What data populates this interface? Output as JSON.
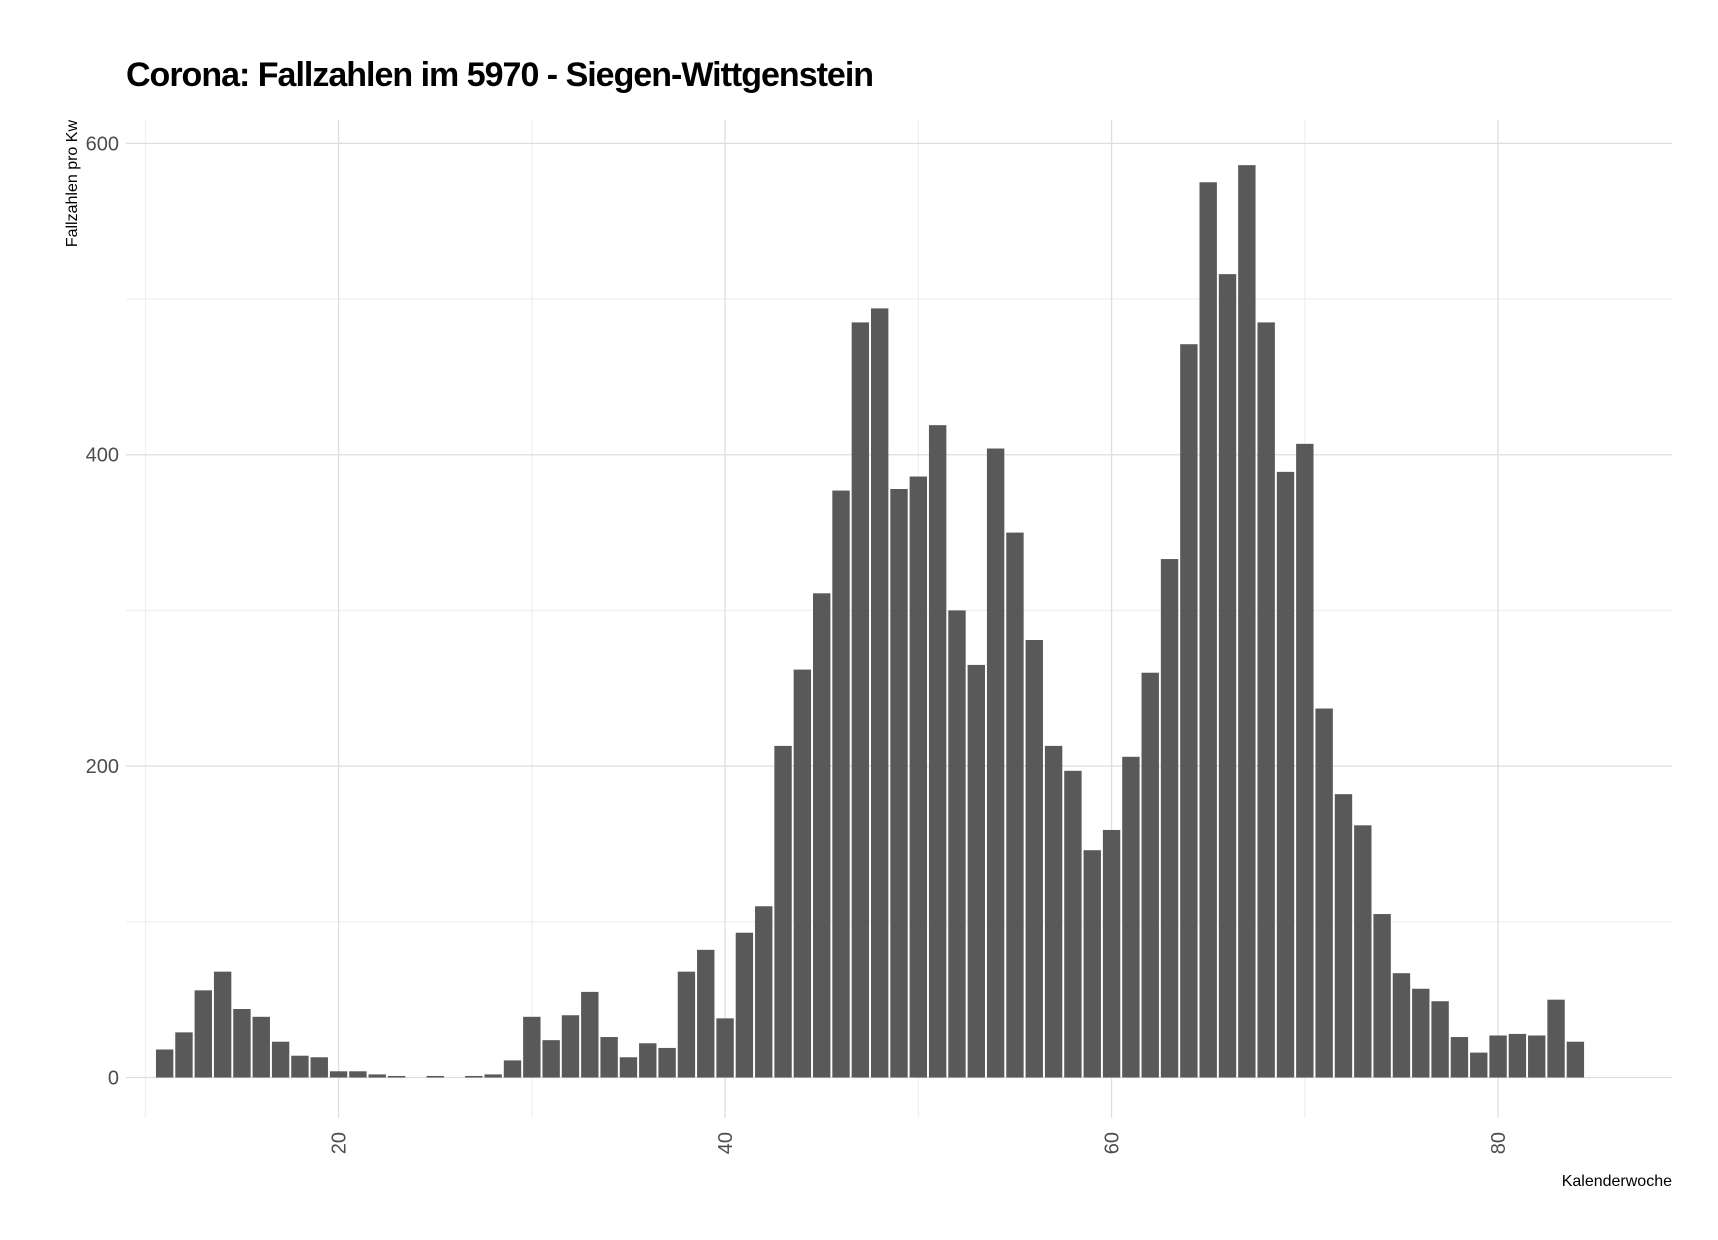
{
  "chart_data": {
    "type": "bar",
    "title": "Corona: Fallzahlen im 5970 - Siegen-Wittgenstein",
    "xlabel": "Kalenderwoche",
    "ylabel": "Fallzahlen pro Kw",
    "xlim": [
      9,
      89
    ],
    "ylim": [
      -26,
      615
    ],
    "x_ticks": [
      20,
      40,
      60,
      80
    ],
    "y_ticks": [
      0,
      200,
      400,
      600
    ],
    "grid": true,
    "bar_color": "#595959",
    "x": [
      11,
      12,
      13,
      14,
      15,
      16,
      17,
      18,
      19,
      20,
      21,
      22,
      23,
      24,
      25,
      26,
      27,
      28,
      29,
      30,
      31,
      32,
      33,
      34,
      35,
      36,
      37,
      38,
      39,
      40,
      41,
      42,
      43,
      44,
      45,
      46,
      47,
      48,
      49,
      50,
      51,
      52,
      53,
      54,
      55,
      56,
      57,
      58,
      59,
      60,
      61,
      62,
      63,
      64,
      65,
      66,
      67,
      68,
      69,
      70,
      71,
      72,
      73,
      74,
      75,
      76,
      77,
      78,
      79,
      80,
      81,
      82,
      83,
      84
    ],
    "values": [
      18,
      29,
      56,
      68,
      44,
      39,
      23,
      14,
      13,
      4,
      4,
      2,
      1,
      0,
      1,
      0,
      1,
      2,
      11,
      39,
      24,
      40,
      55,
      26,
      13,
      22,
      19,
      68,
      82,
      38,
      93,
      110,
      213,
      262,
      311,
      377,
      485,
      494,
      378,
      386,
      419,
      300,
      265,
      404,
      350,
      281,
      213,
      197,
      146,
      159,
      206,
      260,
      333,
      471,
      575,
      516,
      586,
      485,
      389,
      407,
      237,
      182,
      162,
      105,
      67,
      57,
      49,
      26,
      16,
      27,
      28,
      27,
      50,
      23
    ]
  }
}
